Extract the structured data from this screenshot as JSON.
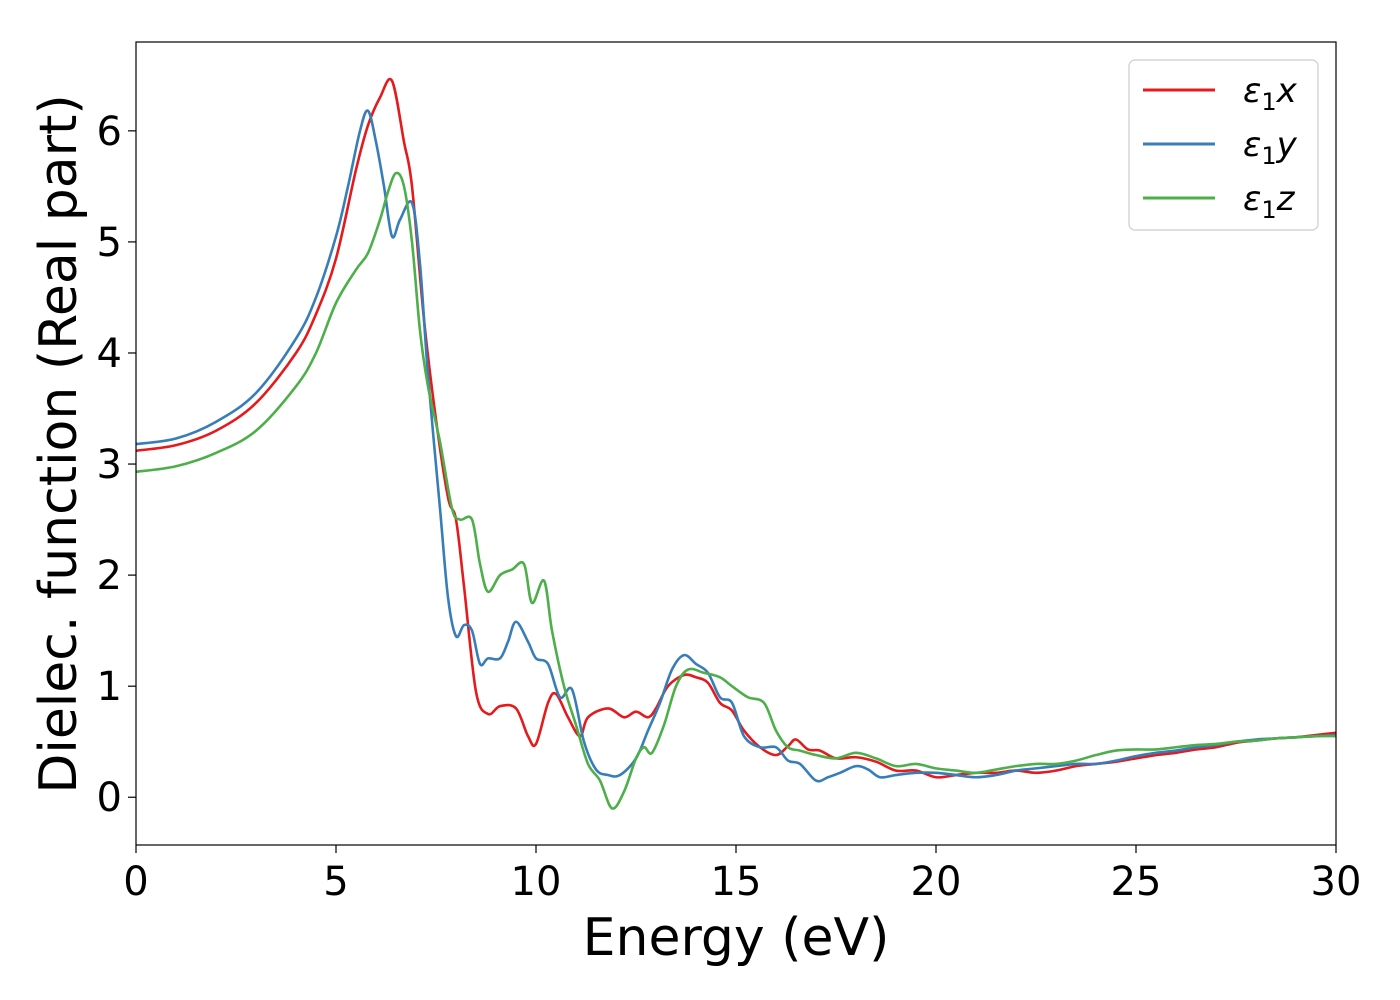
{
  "chart_data": {
    "type": "line",
    "title": "",
    "xlabel": "Energy (eV)",
    "ylabel": "Dielec. function (Real part)",
    "xlim": [
      0,
      30
    ],
    "ylim": [
      -0.43,
      6.8
    ],
    "xticks": [
      0,
      5,
      10,
      15,
      20,
      25,
      30
    ],
    "yticks": [
      0,
      1,
      2,
      3,
      4,
      5,
      6
    ],
    "grid": false,
    "legend_position": "top-right",
    "series": [
      {
        "name": "ε₁x",
        "legend_main": "ε",
        "legend_sub": "1",
        "legend_tail": "x",
        "color": "#e41a1c",
        "points": [
          [
            0,
            3.12
          ],
          [
            1,
            3.17
          ],
          [
            2,
            3.3
          ],
          [
            3,
            3.55
          ],
          [
            4,
            4.0
          ],
          [
            4.5,
            4.35
          ],
          [
            5,
            4.85
          ],
          [
            5.5,
            5.65
          ],
          [
            5.8,
            6.05
          ],
          [
            6.1,
            6.3
          ],
          [
            6.4,
            6.45
          ],
          [
            6.7,
            5.9
          ],
          [
            6.9,
            5.5
          ],
          [
            7.2,
            4.3
          ],
          [
            7.5,
            3.4
          ],
          [
            7.8,
            2.7
          ],
          [
            8.0,
            2.5
          ],
          [
            8.2,
            1.9
          ],
          [
            8.5,
            0.95
          ],
          [
            8.8,
            0.75
          ],
          [
            9.1,
            0.82
          ],
          [
            9.5,
            0.8
          ],
          [
            9.8,
            0.55
          ],
          [
            10.0,
            0.48
          ],
          [
            10.3,
            0.85
          ],
          [
            10.5,
            0.93
          ],
          [
            10.8,
            0.72
          ],
          [
            11.1,
            0.55
          ],
          [
            11.3,
            0.72
          ],
          [
            11.8,
            0.8
          ],
          [
            12.2,
            0.72
          ],
          [
            12.5,
            0.77
          ],
          [
            12.8,
            0.72
          ],
          [
            13.0,
            0.8
          ],
          [
            13.3,
            1.0
          ],
          [
            13.7,
            1.1
          ],
          [
            14.0,
            1.08
          ],
          [
            14.3,
            1.03
          ],
          [
            14.6,
            0.85
          ],
          [
            14.9,
            0.78
          ],
          [
            15.2,
            0.6
          ],
          [
            15.6,
            0.45
          ],
          [
            16.0,
            0.38
          ],
          [
            16.3,
            0.46
          ],
          [
            16.5,
            0.52
          ],
          [
            16.8,
            0.43
          ],
          [
            17.1,
            0.42
          ],
          [
            17.5,
            0.35
          ],
          [
            18.0,
            0.36
          ],
          [
            18.5,
            0.32
          ],
          [
            19.0,
            0.24
          ],
          [
            19.5,
            0.24
          ],
          [
            20.0,
            0.18
          ],
          [
            20.5,
            0.2
          ],
          [
            21.0,
            0.22
          ],
          [
            21.5,
            0.22
          ],
          [
            22.0,
            0.24
          ],
          [
            22.5,
            0.22
          ],
          [
            23.0,
            0.24
          ],
          [
            23.5,
            0.28
          ],
          [
            24.0,
            0.3
          ],
          [
            24.5,
            0.32
          ],
          [
            25.0,
            0.35
          ],
          [
            25.5,
            0.38
          ],
          [
            26.0,
            0.4
          ],
          [
            26.5,
            0.43
          ],
          [
            27.0,
            0.45
          ],
          [
            27.5,
            0.49
          ],
          [
            28.0,
            0.51
          ],
          [
            28.5,
            0.53
          ],
          [
            29.0,
            0.54
          ],
          [
            29.5,
            0.56
          ],
          [
            30.0,
            0.58
          ]
        ]
      },
      {
        "name": "ε₁y",
        "legend_main": "ε",
        "legend_sub": "1",
        "legend_tail": "y",
        "color": "#377eb8",
        "points": [
          [
            0,
            3.18
          ],
          [
            1,
            3.23
          ],
          [
            2,
            3.38
          ],
          [
            3,
            3.64
          ],
          [
            4,
            4.13
          ],
          [
            4.5,
            4.5
          ],
          [
            5,
            5.05
          ],
          [
            5.3,
            5.5
          ],
          [
            5.6,
            6.0
          ],
          [
            5.8,
            6.18
          ],
          [
            6.0,
            5.9
          ],
          [
            6.2,
            5.5
          ],
          [
            6.4,
            5.05
          ],
          [
            6.6,
            5.2
          ],
          [
            6.9,
            5.35
          ],
          [
            7.1,
            4.8
          ],
          [
            7.3,
            3.8
          ],
          [
            7.6,
            2.6
          ],
          [
            7.8,
            1.8
          ],
          [
            8.0,
            1.45
          ],
          [
            8.2,
            1.55
          ],
          [
            8.4,
            1.5
          ],
          [
            8.6,
            1.2
          ],
          [
            8.8,
            1.25
          ],
          [
            9.1,
            1.25
          ],
          [
            9.3,
            1.4
          ],
          [
            9.5,
            1.58
          ],
          [
            9.8,
            1.4
          ],
          [
            10.0,
            1.25
          ],
          [
            10.3,
            1.2
          ],
          [
            10.6,
            0.9
          ],
          [
            10.9,
            0.97
          ],
          [
            11.2,
            0.5
          ],
          [
            11.5,
            0.25
          ],
          [
            11.8,
            0.2
          ],
          [
            12.1,
            0.2
          ],
          [
            12.5,
            0.35
          ],
          [
            12.8,
            0.6
          ],
          [
            13.1,
            0.85
          ],
          [
            13.4,
            1.15
          ],
          [
            13.7,
            1.28
          ],
          [
            14.0,
            1.2
          ],
          [
            14.3,
            1.12
          ],
          [
            14.6,
            0.9
          ],
          [
            14.9,
            0.85
          ],
          [
            15.2,
            0.55
          ],
          [
            15.6,
            0.45
          ],
          [
            16.0,
            0.45
          ],
          [
            16.3,
            0.33
          ],
          [
            16.6,
            0.3
          ],
          [
            17.0,
            0.15
          ],
          [
            17.3,
            0.18
          ],
          [
            17.6,
            0.22
          ],
          [
            18.0,
            0.28
          ],
          [
            18.3,
            0.25
          ],
          [
            18.6,
            0.18
          ],
          [
            19.0,
            0.2
          ],
          [
            19.5,
            0.22
          ],
          [
            20.0,
            0.22
          ],
          [
            20.5,
            0.2
          ],
          [
            21.0,
            0.18
          ],
          [
            21.5,
            0.2
          ],
          [
            22.0,
            0.24
          ],
          [
            22.5,
            0.26
          ],
          [
            23.0,
            0.28
          ],
          [
            23.5,
            0.3
          ],
          [
            24.0,
            0.3
          ],
          [
            24.5,
            0.33
          ],
          [
            25.0,
            0.37
          ],
          [
            25.5,
            0.4
          ],
          [
            26.0,
            0.42
          ],
          [
            26.5,
            0.45
          ],
          [
            27.0,
            0.47
          ],
          [
            27.5,
            0.5
          ],
          [
            28.0,
            0.52
          ],
          [
            28.5,
            0.53
          ],
          [
            29.0,
            0.54
          ],
          [
            29.5,
            0.55
          ],
          [
            30.0,
            0.56
          ]
        ]
      },
      {
        "name": "ε₁z",
        "legend_main": "ε",
        "legend_sub": "1",
        "legend_tail": "z",
        "color": "#4daf4a",
        "points": [
          [
            0,
            2.93
          ],
          [
            1,
            2.98
          ],
          [
            2,
            3.1
          ],
          [
            3,
            3.3
          ],
          [
            4,
            3.7
          ],
          [
            4.5,
            4.0
          ],
          [
            5,
            4.45
          ],
          [
            5.5,
            4.75
          ],
          [
            5.8,
            4.9
          ],
          [
            6.1,
            5.2
          ],
          [
            6.3,
            5.45
          ],
          [
            6.5,
            5.62
          ],
          [
            6.7,
            5.5
          ],
          [
            6.9,
            5.0
          ],
          [
            7.1,
            4.2
          ],
          [
            7.3,
            3.7
          ],
          [
            7.6,
            3.2
          ],
          [
            7.9,
            2.6
          ],
          [
            8.1,
            2.5
          ],
          [
            8.4,
            2.5
          ],
          [
            8.6,
            2.1
          ],
          [
            8.8,
            1.85
          ],
          [
            9.1,
            2.0
          ],
          [
            9.4,
            2.05
          ],
          [
            9.7,
            2.1
          ],
          [
            9.9,
            1.75
          ],
          [
            10.2,
            1.95
          ],
          [
            10.4,
            1.5
          ],
          [
            10.7,
            1.0
          ],
          [
            11.0,
            0.65
          ],
          [
            11.3,
            0.3
          ],
          [
            11.6,
            0.15
          ],
          [
            11.9,
            -0.1
          ],
          [
            12.2,
            0.05
          ],
          [
            12.5,
            0.35
          ],
          [
            12.7,
            0.45
          ],
          [
            12.9,
            0.4
          ],
          [
            13.2,
            0.65
          ],
          [
            13.5,
            1.0
          ],
          [
            13.8,
            1.15
          ],
          [
            14.2,
            1.12
          ],
          [
            14.6,
            1.08
          ],
          [
            14.9,
            1.0
          ],
          [
            15.3,
            0.9
          ],
          [
            15.7,
            0.85
          ],
          [
            16.0,
            0.6
          ],
          [
            16.3,
            0.45
          ],
          [
            16.6,
            0.42
          ],
          [
            17.0,
            0.38
          ],
          [
            17.5,
            0.35
          ],
          [
            18.0,
            0.4
          ],
          [
            18.5,
            0.35
          ],
          [
            19.0,
            0.28
          ],
          [
            19.5,
            0.3
          ],
          [
            20.0,
            0.26
          ],
          [
            20.5,
            0.24
          ],
          [
            21.0,
            0.22
          ],
          [
            21.5,
            0.25
          ],
          [
            22.0,
            0.28
          ],
          [
            22.5,
            0.3
          ],
          [
            23.0,
            0.3
          ],
          [
            23.5,
            0.33
          ],
          [
            24.0,
            0.38
          ],
          [
            24.5,
            0.42
          ],
          [
            25.0,
            0.43
          ],
          [
            25.5,
            0.43
          ],
          [
            26.0,
            0.45
          ],
          [
            26.5,
            0.47
          ],
          [
            27.0,
            0.48
          ],
          [
            27.5,
            0.5
          ],
          [
            28.0,
            0.51
          ],
          [
            28.5,
            0.53
          ],
          [
            29.0,
            0.54
          ],
          [
            29.5,
            0.55
          ],
          [
            30.0,
            0.55
          ]
        ]
      }
    ]
  }
}
